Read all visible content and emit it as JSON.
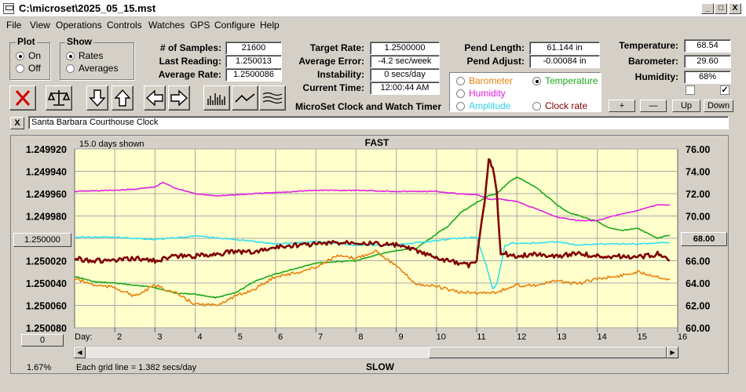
{
  "window": {
    "title": "C:\\microset\\2025_05_15.mst",
    "minimize": "_",
    "maximize": "□",
    "close": "X"
  },
  "menu": [
    "File",
    "View",
    "Operations",
    "Controls",
    "Watches",
    "GPS",
    "Configure",
    "Help"
  ],
  "plot": {
    "title": "Plot",
    "on": "On",
    "off": "Off",
    "selected": "On"
  },
  "show": {
    "title": "Show",
    "rates": "Rates",
    "averages": "Averages",
    "selected": "Rates"
  },
  "stats": {
    "samples_label": "# of Samples:",
    "samples": "21600",
    "last_label": "Last Reading:",
    "last": "1.250013",
    "avg_label": "Average Rate:",
    "avg": "1.2500086",
    "target_label": "Target Rate:",
    "target": "1.2500000",
    "avgerr_label": "Average Error:",
    "avgerr": "-4.2 sec/week",
    "instab_label": "Instability:",
    "instab": "0 secs/day",
    "time_label": "Current Time:",
    "time": "12:00:44 AM",
    "pendlen_label": "Pend Length:",
    "pendlen": "61.144 in",
    "pendadj_label": "Pend Adjust:",
    "pendadj": "-0.00084 in",
    "temp_label": "Temperature:",
    "temp": "68.54",
    "baro_label": "Barometer:",
    "baro": "29.60",
    "hum_label": "Humidity:",
    "hum": "68%"
  },
  "app_caption": "MicroSet Clock and Watch Timer",
  "sensors": {
    "barometer": "Barometer",
    "temperature": "Temperature",
    "humidity": "Humidity",
    "amplitude": "Amplitude",
    "clockrate": "Clock rate",
    "selected": "Temperature"
  },
  "scale_buttons": {
    "plus": "+",
    "minus": "—",
    "up": "Up",
    "down": "Down"
  },
  "checkbox_mark": "✓",
  "watch_name": "Santa Barbara Courthouse Clock",
  "watch_close": "X",
  "colors": {
    "barometer": "#e8820e",
    "temperature": "#1aa81a",
    "humidity": "#e020e0",
    "amplitude": "#30e0f0",
    "clockrate": "#800000",
    "plot_bg": "#ffffcc"
  },
  "chart_data": {
    "type": "line",
    "top_label": "FAST",
    "bottom_label": "SLOW",
    "days_shown": "15.0 days shown",
    "grid_note": "Each grid line = 1.382 secs/day",
    "percent": "1.67%",
    "left_center_button": "1.250000",
    "right_center_button": "68.00",
    "offset_button": "0",
    "xlabel": "Day:",
    "x_ticks": [
      "2",
      "3",
      "4",
      "5",
      "6",
      "7",
      "8",
      "9",
      "10",
      "11",
      "12",
      "13",
      "14",
      "15",
      "16"
    ],
    "xlim": [
      1,
      16
    ],
    "left_ticks": [
      "1.249920",
      "1.249940",
      "1.249960",
      "1.249980",
      "1.250000",
      "1.250020",
      "1.250040",
      "1.250060",
      "1.250080"
    ],
    "left_ylim": [
      1.24992,
      1.25008
    ],
    "left_axis_note": "rate values increase downward (top = fast)",
    "right_ticks": [
      "76.00",
      "74.00",
      "72.00",
      "70.00",
      "68.00",
      "66.00",
      "64.00",
      "62.00",
      "60.00"
    ],
    "right_ylim": [
      60,
      76
    ],
    "series": [
      {
        "name": "Temperature",
        "axis": "right",
        "color": "#1aa81a",
        "x": [
          1,
          1.5,
          2,
          3,
          3.5,
          4,
          4.5,
          5,
          5.5,
          6,
          7,
          8,
          8.5,
          9,
          9.5,
          10,
          10.3,
          10.6,
          11,
          11.3,
          11.5,
          11.8,
          12,
          12.5,
          13,
          13.3,
          14,
          14.3,
          14.6,
          15,
          15.5,
          15.8
        ],
        "y": [
          64.6,
          64.1,
          64.0,
          63.6,
          63.1,
          63.0,
          62.7,
          63.1,
          64.2,
          64.8,
          65.8,
          66.0,
          66.5,
          66.9,
          67.1,
          68.4,
          69.1,
          70.3,
          71.2,
          71.8,
          72.0,
          73.0,
          73.5,
          72.5,
          71.0,
          70.3,
          69.5,
          68.9,
          68.7,
          68.9,
          68.0,
          68.3
        ]
      },
      {
        "name": "Humidity",
        "axis": "right",
        "color": "#e020e0",
        "x": [
          1,
          2,
          2.5,
          3,
          3.2,
          3.5,
          4,
          4.5,
          5,
          6,
          7,
          8,
          9,
          10,
          10.5,
          11,
          11.3,
          11.6,
          12,
          12.5,
          13,
          13.5,
          14,
          14.5,
          15,
          15.5,
          15.8
        ],
        "y": [
          72.2,
          72.3,
          72.4,
          72.6,
          73.0,
          72.5,
          72.0,
          71.8,
          71.9,
          72.1,
          72.3,
          72.3,
          72.2,
          72.2,
          72.0,
          71.9,
          71.5,
          71.5,
          71.3,
          70.6,
          69.9,
          69.6,
          69.6,
          70.1,
          70.5,
          71.0,
          71.0
        ]
      },
      {
        "name": "Amplitude",
        "axis": "right",
        "color": "#30e0f0",
        "x": [
          1,
          2,
          3,
          4,
          5,
          6,
          7,
          8,
          9,
          10,
          10.5,
          11,
          11.2,
          11.4,
          11.5,
          11.6,
          11.7,
          11.9,
          12,
          12.5,
          13,
          13.5,
          14,
          14.5,
          15,
          15.5,
          15.8
        ],
        "y": [
          68.1,
          68.1,
          67.9,
          68.2,
          67.9,
          67.5,
          67.7,
          67.4,
          67.4,
          67.8,
          68.0,
          68.1,
          66.0,
          63.5,
          63.9,
          65.5,
          67.3,
          67.6,
          67.5,
          67.6,
          67.7,
          67.4,
          67.5,
          67.5,
          67.5,
          67.6,
          67.6
        ]
      },
      {
        "name": "Barometer",
        "axis": "right",
        "color": "#e8820e",
        "x": [
          1,
          1.5,
          2,
          2.5,
          3,
          3.5,
          4,
          4.5,
          5,
          5.5,
          6,
          6.5,
          7,
          7.5,
          8,
          8.5,
          9,
          9.5,
          10,
          10.5,
          11,
          11.5,
          12,
          12.5,
          13,
          13.5,
          14,
          14.5,
          15,
          15.5,
          15.8
        ],
        "y": [
          64.4,
          63.8,
          63.6,
          62.8,
          63.8,
          63.1,
          62.1,
          62.0,
          62.8,
          63.5,
          64.6,
          64.9,
          65.4,
          66.4,
          66.2,
          66.9,
          65.5,
          63.9,
          63.7,
          63.2,
          63.1,
          63.2,
          63.8,
          63.8,
          64.2,
          63.9,
          64.4,
          64.6,
          65.0,
          64.6,
          64.3
        ]
      },
      {
        "name": "Clock rate",
        "axis": "left",
        "color": "#800000",
        "x": [
          1,
          1.5,
          2,
          2.5,
          3,
          3.5,
          4,
          4.5,
          5,
          5.5,
          6,
          6.5,
          7,
          7.5,
          8,
          8.5,
          9,
          9.5,
          10,
          10.5,
          10.8,
          11,
          11.2,
          11.3,
          11.4,
          11.5,
          11.6,
          11.7,
          11.8,
          12,
          12.5,
          13,
          13.5,
          14,
          14.5,
          15,
          15.5,
          15.8
        ],
        "y": [
          1.250018,
          1.25002,
          1.25002,
          1.250018,
          1.25002,
          1.250016,
          1.250016,
          1.250014,
          1.250012,
          1.250012,
          1.250008,
          1.250006,
          1.250005,
          1.250004,
          1.250003,
          1.250005,
          1.250006,
          1.250011,
          1.250018,
          1.250022,
          1.250024,
          1.25002,
          1.249966,
          1.24993,
          1.249935,
          1.24996,
          1.250015,
          1.250012,
          1.250016,
          1.250016,
          1.250014,
          1.250016,
          1.250013,
          1.250016,
          1.250016,
          1.250017,
          1.250014,
          1.25002
        ]
      }
    ]
  }
}
